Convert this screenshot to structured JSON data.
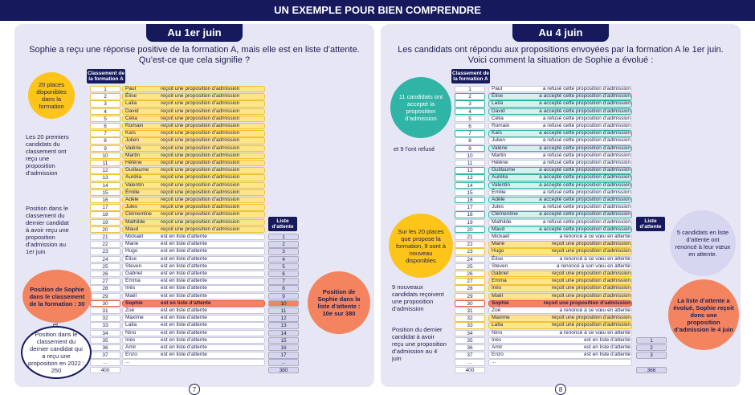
{
  "header": {
    "title": "UN EXEMPLE POUR BIEN COMPRENDRE"
  },
  "panels": [
    {
      "title": "Au 1er juin",
      "intro": [
        "Sophie a reçu une réponse positive de la formation A, mais elle est en liste d’attente.",
        "Qu’est-ce que cela signifie ?"
      ],
      "rank_header": "Classement de la formation A",
      "wait_header": "Liste d’attente",
      "page": "7",
      "notes": [
        "20 places disponibles dans la formation",
        "Les 20 premiers candidats du classement ont reçu une proposition d’admission",
        "Position dans le classement du dernier candidat à avoir reçu une proposition d’admission au 1er juin",
        "Position de Sophie dans le classement de la formation : 30",
        "et",
        "Position dans le classement du dernier candidat qui a reçu une proposition en 2022 : 250",
        "Position de Sophie dans la liste d’attente : 10e sur 380"
      ],
      "rows": [
        {
          "rank": 1,
          "name": "Paul",
          "status": "reçoit une proposition d’admission"
        },
        {
          "rank": 2,
          "name": "Élise",
          "status": "reçoit une proposition d’admission"
        },
        {
          "rank": 3,
          "name": "Laïla",
          "status": "reçoit une proposition d’admission"
        },
        {
          "rank": 4,
          "name": "David",
          "status": "reçoit une proposition d’admission"
        },
        {
          "rank": 5,
          "name": "Célia",
          "status": "reçoit une proposition d’admission"
        },
        {
          "rank": 6,
          "name": "Romain",
          "status": "reçoit une proposition d’admission"
        },
        {
          "rank": 7,
          "name": "Kaïs",
          "status": "reçoit une proposition d’admission"
        },
        {
          "rank": 8,
          "name": "Julien",
          "status": "reçoit une proposition d’admission"
        },
        {
          "rank": 9,
          "name": "Valérie",
          "status": "reçoit une proposition d’admission"
        },
        {
          "rank": 10,
          "name": "Martin",
          "status": "reçoit une proposition d’admission"
        },
        {
          "rank": 11,
          "name": "Hélène",
          "status": "reçoit une proposition d’admission"
        },
        {
          "rank": 12,
          "name": "Guillaume",
          "status": "reçoit une proposition d’admission"
        },
        {
          "rank": 13,
          "name": "Aurélia",
          "status": "reçoit une proposition d’admission"
        },
        {
          "rank": 14,
          "name": "Valentin",
          "status": "reçoit une proposition d’admission"
        },
        {
          "rank": 15,
          "name": "Émilie",
          "status": "reçoit une proposition d’admission"
        },
        {
          "rank": 16,
          "name": "Adèle",
          "status": "reçoit une proposition d’admission"
        },
        {
          "rank": 17,
          "name": "Jules",
          "status": "reçoit une proposition d’admission"
        },
        {
          "rank": 18,
          "name": "Clémentine",
          "status": "reçoit une proposition d’admission"
        },
        {
          "rank": 19,
          "name": "Mathilde",
          "status": "reçoit une proposition d’admission"
        },
        {
          "rank": 20,
          "name": "Maud",
          "status": "reçoit une proposition d’admission"
        },
        {
          "rank": 21,
          "name": "Mickaël",
          "status": "est en liste d’attente",
          "wait": 1
        },
        {
          "rank": 22,
          "name": "Marie",
          "status": "est en liste d’attente",
          "wait": 2
        },
        {
          "rank": 23,
          "name": "Hugo",
          "status": "est en liste d’attente",
          "wait": 3
        },
        {
          "rank": 24,
          "name": "Élise",
          "status": "est en liste d’attente",
          "wait": 4
        },
        {
          "rank": 25,
          "name": "Steven",
          "status": "est en liste d’attente",
          "wait": 5
        },
        {
          "rank": 26,
          "name": "Gabriel",
          "status": "est en liste d’attente",
          "wait": 6
        },
        {
          "rank": 27,
          "name": "Emma",
          "status": "est en liste d’attente",
          "wait": 7
        },
        {
          "rank": 28,
          "name": "Inès",
          "status": "est en liste d’attente",
          "wait": 8
        },
        {
          "rank": 29,
          "name": "Maël",
          "status": "est en liste d’attente",
          "wait": 9
        },
        {
          "rank": 30,
          "name": "Sophie",
          "status": "est en liste d’attente",
          "wait": 10
        },
        {
          "rank": 31,
          "name": "Zoé",
          "status": "est en liste d’attente",
          "wait": 11
        },
        {
          "rank": 32,
          "name": "Maxime",
          "status": "est en liste d’attente",
          "wait": 12
        },
        {
          "rank": 33,
          "name": "Laïla",
          "status": "est en liste d’attente",
          "wait": 13
        },
        {
          "rank": 34,
          "name": "Nino",
          "status": "est en liste d’attente",
          "wait": 14
        },
        {
          "rank": 35,
          "name": "Inès",
          "status": "est en liste d’attente",
          "wait": 15
        },
        {
          "rank": 36,
          "name": "Amir",
          "status": "est en liste d’attente",
          "wait": 16
        },
        {
          "rank": 37,
          "name": "Enzo",
          "status": "est en liste d’attente",
          "wait": 17
        },
        {
          "rank": "...",
          "name": "...",
          "wait": "..."
        },
        {
          "rank": 400,
          "wait": 380
        }
      ]
    },
    {
      "title": "Au 4 juin",
      "intro": [
        "Les candidats ont répondu aux propositions envoyées par la formation A le 1er juin.",
        "Voici comment la situation de Sophie a évolué :"
      ],
      "rank_header": "Classement de la formation A",
      "wait_header": "Liste d’attente",
      "page": "8",
      "notes": [
        "11 candidats ont accepté la proposition d’admission",
        "et 9 l’ont refusé",
        "Sur les 20 places que propose la formation, 9 sont à nouveau disponibles",
        "9 nouveaux candidats reçoivent une proposition d’admission",
        "Position du dernier candidat à avoir reçu une proposition d’admission au 4 juin",
        "5 candidats en liste d’attente ont renoncé à leur vœux en attente.",
        "La liste d’attente a évolué, Sophie reçoit donc une proposition d’admission le 4 juin"
      ],
      "rows": [
        {
          "rank": 1,
          "name": "Paul",
          "status": "a refusé cette proposition d’admission"
        },
        {
          "rank": 2,
          "name": "Élise",
          "status": "a accepté cette proposition d’admission"
        },
        {
          "rank": 3,
          "name": "Laïla",
          "status": "a accepté cette proposition d’admission"
        },
        {
          "rank": 4,
          "name": "David",
          "status": "a accepté cette proposition d’admission"
        },
        {
          "rank": 5,
          "name": "Célia",
          "status": "a refusé cette proposition d’admission"
        },
        {
          "rank": 6,
          "name": "Romain",
          "status": "a refusé cette proposition d’admission"
        },
        {
          "rank": 7,
          "name": "Kaïs",
          "status": "a accepté cette proposition d’admission"
        },
        {
          "rank": 8,
          "name": "Julien",
          "status": "a refusé cette proposition d’admission"
        },
        {
          "rank": 9,
          "name": "Valérie",
          "status": "a accepté cette proposition d’admission"
        },
        {
          "rank": 10,
          "name": "Martin",
          "status": "a refusé cette proposition d’admission"
        },
        {
          "rank": 11,
          "name": "Hélène",
          "status": "a refusé cette proposition d’admission"
        },
        {
          "rank": 12,
          "name": "Guillaume",
          "status": "a accepté cette proposition d’admission"
        },
        {
          "rank": 13,
          "name": "Aurélia",
          "status": "a accepté cette proposition d’admission"
        },
        {
          "rank": 14,
          "name": "Valentin",
          "status": "a accepté cette proposition d’admission"
        },
        {
          "rank": 15,
          "name": "Émilie",
          "status": "a refusé cette proposition d’admission"
        },
        {
          "rank": 16,
          "name": "Adèle",
          "status": "a accepté cette proposition d’admission"
        },
        {
          "rank": 17,
          "name": "Jules",
          "status": "a refusé cette proposition d’admission"
        },
        {
          "rank": 18,
          "name": "Clémentine",
          "status": "a accepté cette proposition d’admission"
        },
        {
          "rank": 19,
          "name": "Mathilde",
          "status": "a refusé cette proposition d’admission"
        },
        {
          "rank": 20,
          "name": "Maud",
          "status": "a accepté cette proposition d’admission"
        },
        {
          "rank": 21,
          "name": "Mickaël",
          "status": "a renoncé à ce vœu en attente"
        },
        {
          "rank": 22,
          "name": "Marie",
          "status": "reçoit une proposition d’admission"
        },
        {
          "rank": 23,
          "name": "Hugo",
          "status": "reçoit une proposition d’admission"
        },
        {
          "rank": 24,
          "name": "Élise",
          "status": "a renoncé à ce vœu en attente"
        },
        {
          "rank": 25,
          "name": "Steven",
          "status": "a renoncé à son vœu en attente"
        },
        {
          "rank": 26,
          "name": "Gabriel",
          "status": "reçoit une proposition d’admission"
        },
        {
          "rank": 27,
          "name": "Emma",
          "status": "reçoit une proposition d’admission"
        },
        {
          "rank": 28,
          "name": "Inès",
          "status": "reçoit une proposition d’admission"
        },
        {
          "rank": 29,
          "name": "Maël",
          "status": "reçoit une proposition d’admission"
        },
        {
          "rank": 30,
          "name": "Sophie",
          "status": "reçoit une proposition d’admission"
        },
        {
          "rank": 31,
          "name": "Zoé",
          "status": "a renoncé à ce vœu en attente"
        },
        {
          "rank": 32,
          "name": "Maxime",
          "status": "reçoit une proposition d’admission"
        },
        {
          "rank": 33,
          "name": "Laïla",
          "status": "reçoit une proposition d’admission"
        },
        {
          "rank": 34,
          "name": "Nino",
          "status": "a renoncé à ce vœu en attente"
        },
        {
          "rank": 35,
          "name": "Inès",
          "status": "est en liste d’attente",
          "wait": 1
        },
        {
          "rank": 36,
          "name": "Amir",
          "status": "est en liste d’attente",
          "wait": 2
        },
        {
          "rank": 37,
          "name": "Enzo",
          "status": "est en liste d’attente",
          "wait": 3
        },
        {
          "rank": "...",
          "name": "..."
        },
        {
          "rank": 400,
          "wait": 366
        }
      ]
    }
  ]
}
